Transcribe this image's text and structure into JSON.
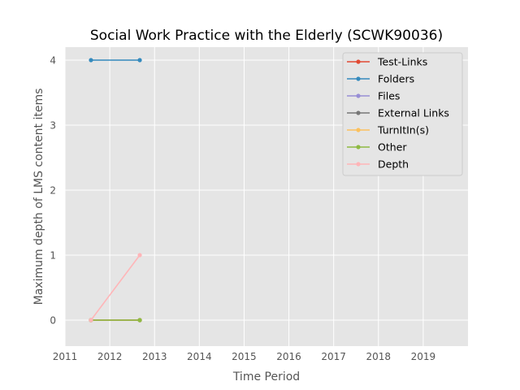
{
  "chart_data": {
    "type": "line",
    "title": "Social Work Practice with the Elderly (SCWK90036)",
    "xlabel": "Time Period",
    "ylabel": "Maximum depth of LMS content items",
    "xlim": [
      2011,
      2020
    ],
    "ylim": [
      -0.4,
      4.2
    ],
    "xticks": [
      2011,
      2012,
      2013,
      2014,
      2015,
      2016,
      2017,
      2018,
      2019
    ],
    "yticks": [
      0,
      1,
      2,
      3,
      4
    ],
    "grid": true,
    "legend_position": "top-right",
    "x": [
      2011.58,
      2012.67
    ],
    "series": [
      {
        "name": "Test-Links",
        "color": "#E24A33",
        "values": [
          0,
          0
        ]
      },
      {
        "name": "Folders",
        "color": "#348ABD",
        "values": [
          4,
          4
        ]
      },
      {
        "name": "Files",
        "color": "#988ED5",
        "values": [
          0,
          0
        ]
      },
      {
        "name": "External Links",
        "color": "#777777",
        "values": [
          0,
          0
        ]
      },
      {
        "name": "TurnItIn(s)",
        "color": "#FBC15E",
        "values": [
          0,
          0
        ]
      },
      {
        "name": "Other",
        "color": "#8EBA42",
        "values": [
          0,
          0
        ]
      },
      {
        "name": "Depth",
        "color": "#FFB5B8",
        "values": [
          0,
          1
        ]
      }
    ]
  }
}
